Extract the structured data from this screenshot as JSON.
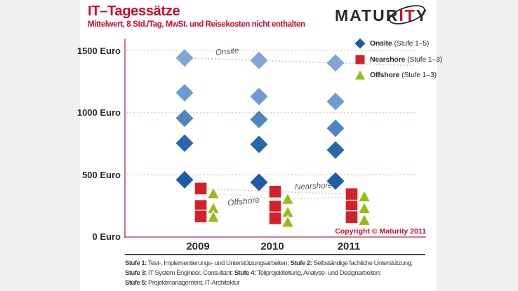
{
  "header": {
    "title": "IT–Tagessätze",
    "subtitle": "Mittelwert, 8 Std./Tag, MwSt. und Reisekosten nicht enthalten"
  },
  "logo": {
    "left": "MATUR",
    "accent": "IT",
    "right": "Y"
  },
  "chart_data": {
    "type": "scatter",
    "title": "IT–Tagessätze",
    "subtitle": "Mittelwert, 8 Std./Tag, MwSt. und Reisekosten nicht enthalten",
    "categories": [
      "2009",
      "2010",
      "2011"
    ],
    "ylabel": "Euro",
    "ylim": [
      0,
      1500
    ],
    "y_tick_values": [
      1500,
      1000,
      500,
      0
    ],
    "y_tick_labels": [
      "1500 Euro",
      "1000 Euro",
      "500 Euro",
      "0 Euro"
    ],
    "grid": "dotted horizontal lines at 500, 1000, 1500",
    "legend_position": "top-right",
    "series": [
      {
        "name": "Onsite",
        "legend": "(Stufe 1–5)",
        "marker": "diamond",
        "color": "#1d5ca6",
        "point_colors": [
          "#7ea7d6",
          "#6d9bcf",
          "#4e84c0",
          "#2767ab",
          "#1d5ca6"
        ],
        "trend_color": "#9fc0e2",
        "trend_label": "Onsite",
        "values": [
          [
            1440,
            1160,
            955,
            755,
            460
          ],
          [
            1420,
            1130,
            945,
            745,
            440
          ],
          [
            1400,
            1090,
            875,
            700,
            450
          ]
        ]
      },
      {
        "name": "Nearshore",
        "legend": "(Stufe 1–3)",
        "marker": "square",
        "color": "#d52027",
        "trend_color": "#e9a9ad",
        "trend_label": "Nearshore",
        "values": [
          [
            390,
            250,
            165
          ],
          [
            365,
            245,
            150
          ],
          [
            345,
            245,
            160
          ]
        ]
      },
      {
        "name": "Offshore",
        "legend": "(Stufe 1–3)",
        "marker": "triangle",
        "color": "#94bd17",
        "trend_color": "#d6d593",
        "trend_label": "Offshore",
        "values": [
          [
            350,
            230,
            160
          ],
          [
            305,
            200,
            120
          ],
          [
            325,
            230,
            135
          ]
        ]
      }
    ],
    "copyright": "Copyright © Maturity 2011"
  },
  "footnotes": {
    "lines": [
      [
        [
          "Stufe 1:",
          " Test-, Implementierungs- und Unterstützungsarbeiten; "
        ],
        [
          "Stufe 2:",
          " Selbständige fachliche Unterstützung;"
        ]
      ],
      [
        [
          "Stufe 3:",
          " IT System Engineer, Consultant; "
        ],
        [
          "Stufe 4:",
          " Teilprojektleitung, Analyse- und Designarbeiten;"
        ]
      ],
      [
        [
          "Stufe 5:",
          " Projektmanagement, IT-Architektur"
        ]
      ]
    ]
  },
  "palette": {
    "title_red": "#cf0a2c",
    "axis_red": "#c9545e",
    "grid_pink": "#edc6c9",
    "text_dark": "#2c2c2c",
    "card_bg": "#ffffff",
    "page_bg": "#eff0ef"
  }
}
